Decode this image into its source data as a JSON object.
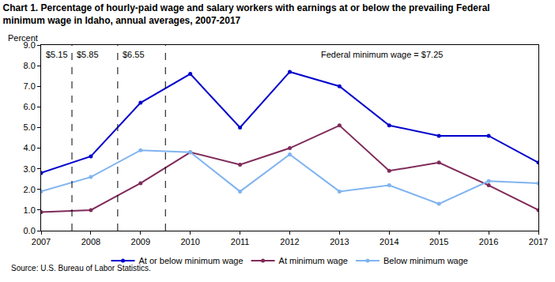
{
  "chart_data": {
    "type": "line",
    "title": "Chart 1. Percentage of hourly-paid wage and salary workers with earnings at or below the prevailing Federal minimum wage in Idaho, annual averages, 2007-2017",
    "y_label": "Percent",
    "source": "Source: U.S. Bureau of Labor Statistics.",
    "x": [
      2007,
      2008,
      2009,
      2010,
      2011,
      2012,
      2013,
      2014,
      2015,
      2016,
      2017
    ],
    "series": [
      {
        "name": "At or below minimum wage",
        "color": "#0000cc",
        "marker": "circle",
        "line_style": "solid",
        "values": [
          2.8,
          3.6,
          6.2,
          7.6,
          5.0,
          7.7,
          7.0,
          5.1,
          4.6,
          4.6,
          3.3
        ]
      },
      {
        "name": "At minimum wage",
        "color": "#7f2a5a",
        "marker": "circle",
        "line_style": "solid",
        "values": [
          0.9,
          1.0,
          2.3,
          3.8,
          3.2,
          4.0,
          5.1,
          2.9,
          3.3,
          2.2,
          1.0
        ]
      },
      {
        "name": "Below minimum wage",
        "color": "#80b4f0",
        "marker": "circle",
        "line_style": "solid",
        "values": [
          1.9,
          2.6,
          3.9,
          3.8,
          1.9,
          3.7,
          1.9,
          2.2,
          1.3,
          2.4,
          2.3
        ]
      }
    ],
    "wage_changes": [
      2007.62,
      2008.54,
      2009.5
    ],
    "annotations": [
      "$5.15",
      "$5.85",
      "$6.55",
      "Federal minimum wage = $7.25"
    ],
    "xlim": [
      2007,
      2017
    ],
    "xticks": [
      2007,
      2008,
      2009,
      2010,
      2011,
      2012,
      2013,
      2014,
      2015,
      2016,
      2017
    ],
    "ylim": [
      0,
      9
    ],
    "yticks": [
      {
        "value": 0,
        "label": "0.0"
      },
      {
        "value": 1,
        "label": "1.0"
      },
      {
        "value": 2,
        "label": "2.0"
      },
      {
        "value": 3,
        "label": "3.0"
      },
      {
        "value": 4,
        "label": "4.0"
      },
      {
        "value": 5,
        "label": "5.0"
      },
      {
        "value": 6,
        "label": "6.0"
      },
      {
        "value": 7,
        "label": "7.0"
      },
      {
        "value": 8,
        "label": "8.0"
      },
      {
        "value": 9,
        "label": "9.0"
      }
    ],
    "grid": false,
    "legend": "bottom"
  }
}
